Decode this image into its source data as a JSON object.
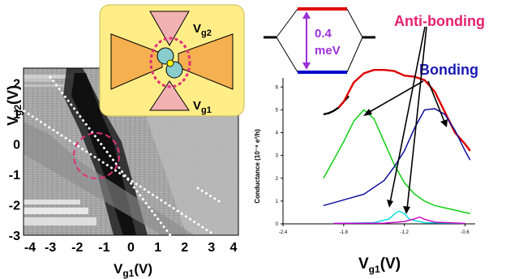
{
  "figure": {
    "left_panel": {
      "x_label_main": "V",
      "x_label_sub": "g1",
      "x_label_unit": "(V)",
      "y_label_main": "V",
      "y_label_sub": "g2",
      "y_label_unit": "(V)",
      "x_ticks": [
        "-4",
        "-3",
        "-2",
        "-1",
        "0",
        "1",
        "2",
        "3",
        "4"
      ],
      "y_ticks": [
        "2",
        "1",
        "0",
        "-1",
        "-2",
        "-3"
      ]
    },
    "inset": {
      "gate1_main": "V",
      "gate1_sub": "g1",
      "gate2_main": "V",
      "gate2_sub": "g2"
    },
    "energy_diagram": {
      "splitting_line1": "0.4",
      "splitting_line2": "meV",
      "antibonding_label": "Anti-bonding",
      "bonding_label": "Bonding"
    },
    "colors": {
      "antibonding": "#e6206e",
      "bonding": "#1a1ab4",
      "splitting": "#9b30d9",
      "inset_bg": "#ffee88",
      "highlight": "#e0307a"
    }
  },
  "chart_data": {
    "type": "line",
    "xlabel_main": "V",
    "xlabel_sub": "g1",
    "xlabel_unit": "(V)",
    "ylabel": "Conductance (10⁻⁸ e²/h)",
    "xlim": [
      -2.4,
      -0.5
    ],
    "ylim": [
      0,
      6.4
    ],
    "x_ticks": [
      "-2.4",
      "-1.8",
      "-1.2",
      "-0.6"
    ],
    "y_ticks": [
      "0",
      "1",
      "2",
      "3",
      "4",
      "5",
      "6"
    ],
    "series": [
      {
        "color": "#000000",
        "x": [
          -2.0,
          -1.95,
          -1.9,
          -1.85,
          -1.8,
          -1.75
        ],
        "y": [
          4.8,
          4.85,
          4.95,
          5.1,
          5.35,
          5.6
        ]
      },
      {
        "color": "#dd0000",
        "x": [
          -1.85,
          -1.8,
          -1.7,
          -1.6,
          -1.5,
          -1.4,
          -1.3,
          -1.2,
          -1.1,
          -1.0,
          -0.9,
          -0.8,
          -0.7,
          -0.6,
          -0.55
        ],
        "y": [
          5.1,
          5.35,
          6.2,
          6.6,
          6.75,
          6.75,
          6.7,
          6.5,
          6.45,
          6.3,
          5.8,
          4.9,
          4.0,
          3.5,
          3.2
        ]
      },
      {
        "color": "#00cc00",
        "x": [
          -2.0,
          -1.9,
          -1.8,
          -1.7,
          -1.6,
          -1.5,
          -1.4,
          -1.3,
          -1.2,
          -1.1,
          -1.0,
          -0.9,
          -0.8,
          -0.7,
          -0.6,
          -0.55
        ],
        "y": [
          2.0,
          2.8,
          3.6,
          4.5,
          5.0,
          4.6,
          3.6,
          2.6,
          1.8,
          1.3,
          1.0,
          0.8,
          0.7,
          0.6,
          0.5,
          0.45
        ]
      },
      {
        "color": "#000099",
        "x": [
          -2.0,
          -1.8,
          -1.6,
          -1.4,
          -1.3,
          -1.2,
          -1.1,
          -1.0,
          -0.9,
          -0.8,
          -0.7,
          -0.6,
          -0.55
        ],
        "y": [
          0.8,
          1.05,
          1.3,
          1.9,
          2.5,
          3.2,
          4.2,
          5.0,
          5.05,
          4.8,
          4.1,
          3.2,
          2.8
        ]
      },
      {
        "color": "#00dddd",
        "x": [
          -1.9,
          -1.5,
          -1.35,
          -1.28,
          -1.25,
          -1.2,
          -1.15,
          -1.0,
          -0.6
        ],
        "y": [
          0.02,
          0.05,
          0.22,
          0.5,
          0.55,
          0.45,
          0.2,
          0.05,
          0.02
        ]
      },
      {
        "color": "#cc00cc",
        "x": [
          -1.9,
          -1.4,
          -1.2,
          -1.1,
          -1.05,
          -1.0,
          -0.9,
          -0.6
        ],
        "y": [
          0.02,
          0.03,
          0.1,
          0.22,
          0.3,
          0.2,
          0.08,
          0.02
        ]
      }
    ]
  }
}
